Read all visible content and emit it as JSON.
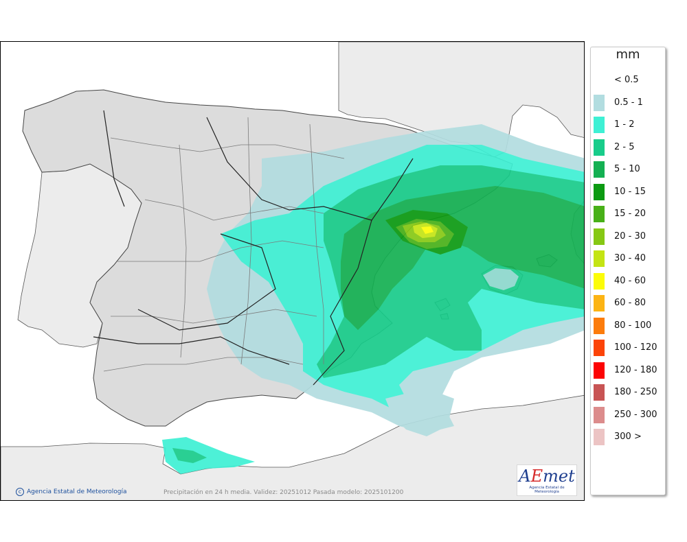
{
  "legend": {
    "unit": "mm",
    "classes": [
      {
        "label": "< 0.5",
        "color": "#ffffff"
      },
      {
        "label": "0.5 - 1",
        "color": "#b2dde0"
      },
      {
        "label": "1 - 2",
        "color": "#3ef0d4"
      },
      {
        "label": "2 - 5",
        "color": "#18cc8a"
      },
      {
        "label": "5 - 10",
        "color": "#14b052"
      },
      {
        "label": "10 - 15",
        "color": "#0c9a12"
      },
      {
        "label": "15 - 20",
        "color": "#48b018"
      },
      {
        "label": "20 - 30",
        "color": "#86c814"
      },
      {
        "label": "30 - 40",
        "color": "#c4e414"
      },
      {
        "label": "40 - 60",
        "color": "#fcfc08"
      },
      {
        "label": "60 - 80",
        "color": "#fcb414"
      },
      {
        "label": "80 - 100",
        "color": "#fc7c0c"
      },
      {
        "label": "100 - 120",
        "color": "#fc4408"
      },
      {
        "label": "120 - 180",
        "color": "#fc0404"
      },
      {
        "label": "180 - 250",
        "color": "#c85454"
      },
      {
        "label": "250 - 300",
        "color": "#dc8c8c"
      },
      {
        "label": "300 >",
        "color": "#ecc4c4"
      }
    ]
  },
  "footer": {
    "credit": "Agencia Estatal de Meteorología",
    "note": "Precipitación en 24 h media. Validez: 20251012 Pasada modelo: 2025101200"
  },
  "logo": {
    "word_a": "A",
    "word_e": "E",
    "word_rest": "met",
    "subtitle": "Agencia Estatal de Meteorología"
  },
  "colors": {
    "sea": "#ffffff",
    "foreign_land": "#ececec",
    "spain_land": "#dcdcdc",
    "borders": "#333333"
  }
}
